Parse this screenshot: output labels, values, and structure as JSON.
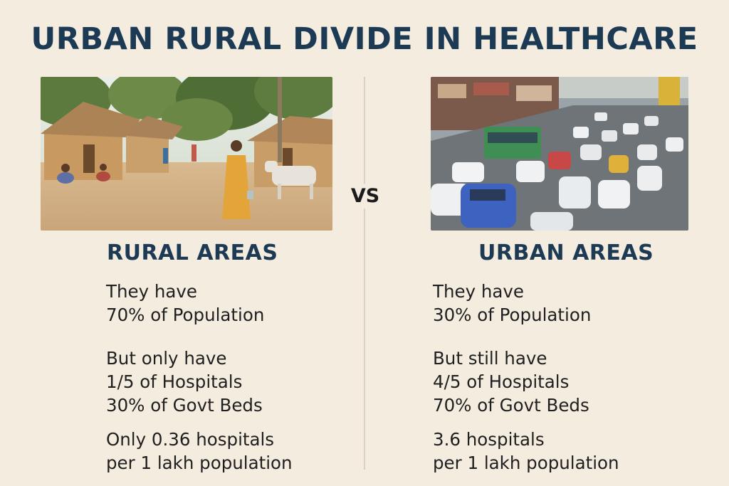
{
  "title": "URBAN RURAL DIVIDE IN HEALTHCARE",
  "vs_label": "VS",
  "rural": {
    "heading": "RURAL AREAS",
    "lines": [
      "They have",
      "70% of Population",
      "But only have",
      "1/5 of Hospitals",
      "30% of Govt Beds",
      "Only 0.36 hospitals",
      "per 1 lakh population"
    ]
  },
  "urban": {
    "heading": "URBAN AREAS",
    "lines": [
      "They have",
      "30% of Population",
      "But still have",
      "4/5 of Hospitals",
      "70% of Govt Beds",
      "3.6 hospitals",
      "per 1 lakh population"
    ]
  },
  "colors": {
    "background": "#f4ecdf",
    "heading": "#1d3a55",
    "body_text": "#1f1f1f"
  }
}
